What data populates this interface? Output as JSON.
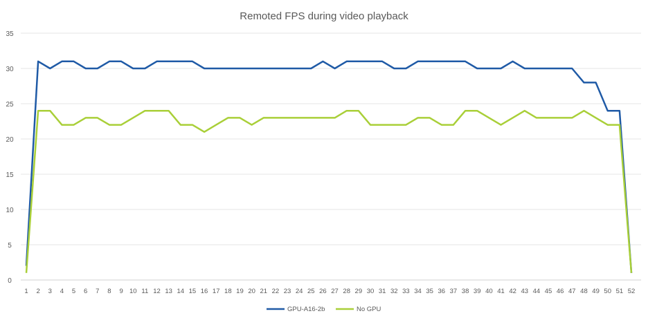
{
  "chart_data": {
    "type": "line",
    "title": "Remoted FPS during video playback",
    "xlabel": "",
    "ylabel": "",
    "ylim": [
      0,
      35
    ],
    "yticks": [
      0,
      5,
      10,
      15,
      20,
      25,
      30,
      35
    ],
    "grid": true,
    "legend": "bottom",
    "x": [
      1,
      2,
      3,
      4,
      5,
      6,
      7,
      8,
      9,
      10,
      11,
      12,
      13,
      14,
      15,
      16,
      17,
      18,
      19,
      20,
      21,
      22,
      23,
      24,
      25,
      26,
      27,
      28,
      29,
      30,
      31,
      32,
      33,
      34,
      35,
      36,
      37,
      38,
      39,
      40,
      41,
      42,
      43,
      44,
      45,
      46,
      47,
      48,
      49,
      50,
      51,
      52
    ],
    "series": [
      {
        "name": "GPU-A16-2b",
        "color": "#1f5aa6",
        "values": [
          2,
          31,
          30,
          31,
          31,
          30,
          30,
          31,
          31,
          30,
          30,
          31,
          31,
          31,
          31,
          30,
          30,
          30,
          30,
          30,
          30,
          30,
          30,
          30,
          30,
          31,
          30,
          31,
          31,
          31,
          31,
          30,
          30,
          31,
          31,
          31,
          31,
          31,
          30,
          30,
          30,
          31,
          30,
          30,
          30,
          30,
          30,
          28,
          28,
          24,
          24,
          1
        ]
      },
      {
        "name": "No GPU",
        "color": "#a9cf38",
        "values": [
          1,
          24,
          24,
          22,
          22,
          23,
          23,
          22,
          22,
          23,
          24,
          24,
          24,
          22,
          22,
          21,
          22,
          23,
          23,
          22,
          23,
          23,
          23,
          23,
          23,
          23,
          23,
          24,
          24,
          22,
          22,
          22,
          22,
          23,
          23,
          22,
          22,
          24,
          24,
          23,
          22,
          23,
          24,
          23,
          23,
          23,
          23,
          24,
          23,
          22,
          22,
          1
        ]
      }
    ]
  }
}
